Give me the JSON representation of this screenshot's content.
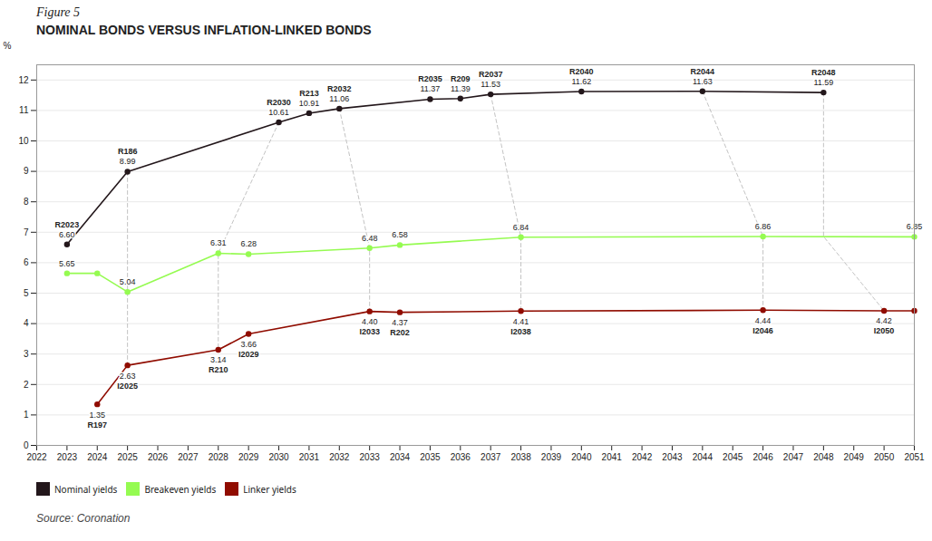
{
  "chart_data": {
    "type": "line",
    "title": "Figure 5",
    "subtitle": "NOMINAL BONDS VERSUS INFLATION-LINKED BONDS",
    "ylabel": "%",
    "caption": "Source: Coronation",
    "xlim": [
      2022,
      2051
    ],
    "xticks": [
      2022,
      2023,
      2024,
      2025,
      2026,
      2027,
      2028,
      2029,
      2030,
      2031,
      2032,
      2033,
      2034,
      2035,
      2036,
      2037,
      2038,
      2039,
      2040,
      2041,
      2042,
      2043,
      2044,
      2045,
      2046,
      2047,
      2048,
      2049,
      2050,
      2051
    ],
    "ylim": [
      0,
      12.5
    ],
    "yticks": [
      0,
      1,
      2,
      3,
      4,
      5,
      6,
      7,
      8,
      9,
      10,
      11,
      12
    ],
    "grid": true,
    "legend": "bottom left",
    "data_labels": true,
    "marker": "circle",
    "series": [
      {
        "name": "Nominal yields",
        "x": [
          2023,
          2025,
          2030,
          2031,
          2032,
          2035,
          2036,
          2037,
          2040,
          2044,
          2048
        ],
        "values": [
          6.6,
          8.99,
          10.61,
          10.91,
          11.06,
          11.37,
          11.39,
          11.53,
          11.62,
          11.63,
          11.59
        ],
        "labels": [
          "R2023",
          "R186",
          "R2030",
          "R213",
          "R2032",
          "R2035",
          "R209",
          "R2037",
          "R2040",
          "R2044",
          "R2048"
        ],
        "value_labels": [
          "6.60",
          "8.99",
          "10.61",
          "10.91",
          "11.06",
          "11.37",
          "11.39",
          "11.53",
          "11.62",
          "11.63",
          "11.59"
        ]
      },
      {
        "name": "Breakeven yields",
        "x": [
          2023,
          2024,
          2025,
          2028,
          2029,
          2033,
          2034,
          2038,
          2046,
          2051
        ],
        "values": [
          5.65,
          5.65,
          5.04,
          6.31,
          6.28,
          6.48,
          6.58,
          6.84,
          6.86,
          6.85
        ],
        "value_labels": [
          "5.65",
          null,
          "5.04",
          "6.31",
          "6.28",
          "6.48",
          "6.58",
          "6.84",
          "6.86",
          "6.85"
        ]
      },
      {
        "name": "Linker yields",
        "x": [
          2024,
          2025,
          2028,
          2029,
          2033,
          2034,
          2038,
          2046,
          2050,
          2051
        ],
        "values": [
          1.35,
          2.63,
          3.14,
          3.66,
          4.4,
          4.37,
          4.41,
          4.44,
          4.42,
          4.42
        ],
        "labels": [
          "R197",
          "I2025",
          "R210",
          "I2029",
          "I2033",
          "R202",
          "I2038",
          "I2046",
          "I2050",
          null
        ],
        "value_labels": [
          "1.35",
          "2.63",
          "3.14",
          "3.66",
          "4.40",
          "4.37",
          "4.41",
          "4.44",
          "4.42",
          null
        ]
      }
    ],
    "connectors": [
      [
        2025,
        8.99,
        2025,
        5.04,
        2025,
        2.63
      ],
      [
        2030,
        10.61,
        2028,
        6.31,
        2028,
        3.14
      ],
      [
        2032,
        11.06,
        2033,
        6.48,
        2033,
        4.4
      ],
      [
        2037,
        11.53,
        2038,
        6.84,
        2038,
        4.41
      ],
      [
        2044,
        11.63,
        2046,
        6.86,
        2046,
        4.44
      ],
      [
        2048,
        11.59,
        2048,
        6.86,
        2050,
        4.42
      ]
    ]
  }
}
